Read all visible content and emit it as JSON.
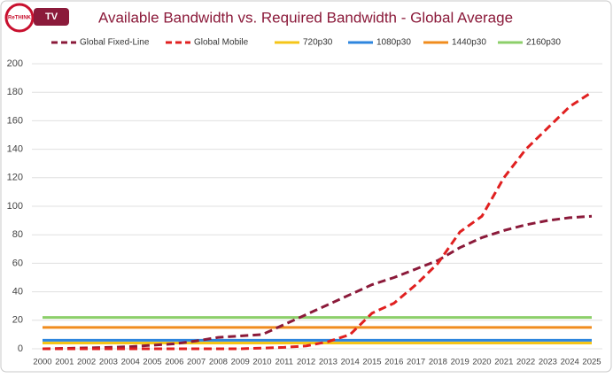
{
  "logo": {
    "brand": "ReTHINK",
    "label": "TV"
  },
  "chart_data": {
    "type": "line",
    "title": "Available Bandwidth vs. Required Bandwidth - Global Average",
    "categories": [
      "2000",
      "2001",
      "2002",
      "2003",
      "2004",
      "2005",
      "2006",
      "2007",
      "2008",
      "2009",
      "2010",
      "2011",
      "2012",
      "2013",
      "2014",
      "2015",
      "2016",
      "2017",
      "2018",
      "2019",
      "2020",
      "2021",
      "2022",
      "2023",
      "2024",
      "2025"
    ],
    "series": [
      {
        "name": "Global Fixed-Line",
        "color": "#8b1a3a",
        "dashed": true,
        "values": [
          0,
          0.3,
          0.6,
          1,
          1.5,
          2.5,
          3.5,
          5.5,
          8,
          9,
          10,
          17,
          24,
          31,
          38,
          45,
          50,
          56,
          62,
          71,
          78,
          83,
          87,
          90,
          92,
          93
        ]
      },
      {
        "name": "Global Mobile",
        "color": "#e02020",
        "dashed": true,
        "values": [
          0,
          0,
          0,
          0,
          0,
          0,
          0,
          0,
          0,
          0,
          0.5,
          1,
          2,
          5,
          10,
          25,
          32,
          45,
          60,
          82,
          93,
          120,
          140,
          155,
          170,
          180
        ]
      },
      {
        "name": "720p30",
        "color": "#f5c518",
        "dashed": false,
        "values": [
          4,
          4,
          4,
          4,
          4,
          4,
          4,
          4,
          4,
          4,
          4,
          4,
          4,
          4,
          4,
          4,
          4,
          4,
          4,
          4,
          4,
          4,
          4,
          4,
          4,
          4
        ]
      },
      {
        "name": "1080p30",
        "color": "#2e86de",
        "dashed": false,
        "values": [
          6,
          6,
          6,
          6,
          6,
          6,
          6,
          6,
          6,
          6,
          6,
          6,
          6,
          6,
          6,
          6,
          6,
          6,
          6,
          6,
          6,
          6,
          6,
          6,
          6,
          6
        ]
      },
      {
        "name": "1440p30",
        "color": "#f08c1e",
        "dashed": false,
        "values": [
          15,
          15,
          15,
          15,
          15,
          15,
          15,
          15,
          15,
          15,
          15,
          15,
          15,
          15,
          15,
          15,
          15,
          15,
          15,
          15,
          15,
          15,
          15,
          15,
          15,
          15
        ]
      },
      {
        "name": "2160p30",
        "color": "#8ccf6a",
        "dashed": false,
        "values": [
          22,
          22,
          22,
          22,
          22,
          22,
          22,
          22,
          22,
          22,
          22,
          22,
          22,
          22,
          22,
          22,
          22,
          22,
          22,
          22,
          22,
          22,
          22,
          22,
          22,
          22
        ]
      }
    ],
    "ylim": [
      0,
      200
    ],
    "yticks": [
      0,
      20,
      40,
      60,
      80,
      100,
      120,
      140,
      160,
      180,
      200
    ],
    "grid": true
  }
}
